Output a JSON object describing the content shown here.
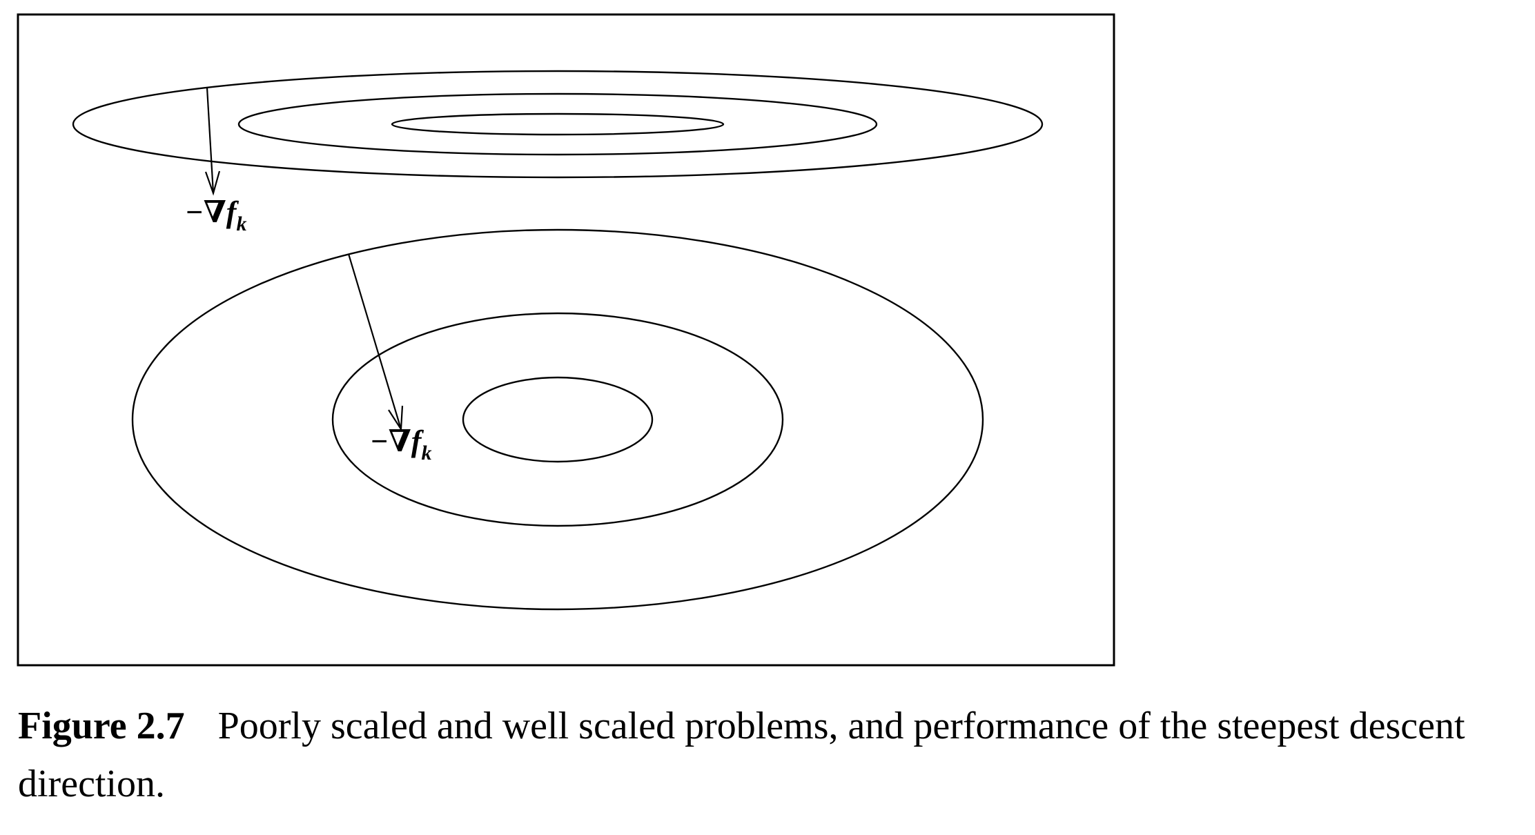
{
  "figure": {
    "arrow_labels": [
      {
        "prefix": "−∇f",
        "subscript": "k"
      },
      {
        "prefix": "−∇f",
        "subscript": "k"
      }
    ]
  },
  "caption": {
    "number": "Figure 2.7",
    "text": "Poorly scaled and well scaled problems, and performance of the steepest descent direction."
  }
}
